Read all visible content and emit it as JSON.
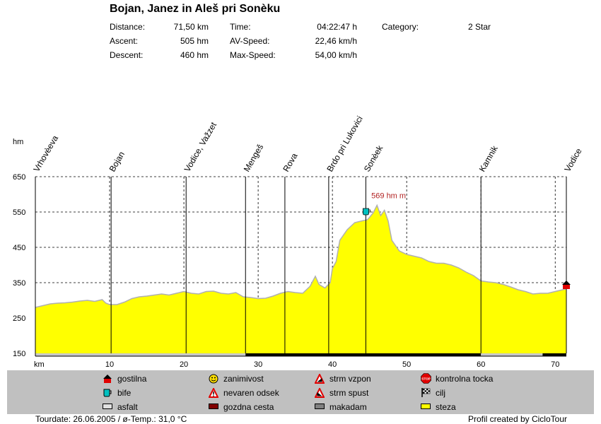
{
  "title": "Bojan, Janez in Aleš pri Sonèku",
  "stats": {
    "distance_label": "Distance:",
    "distance_value": "71,50 km",
    "ascent_label": "Ascent:",
    "ascent_value": "505 hm",
    "descent_label": "Descent:",
    "descent_value": "460 hm",
    "time_label": "Time:",
    "time_value": "04:22:47 h",
    "avspeed_label": "AV-Speed:",
    "avspeed_value": "22,46 km/h",
    "maxspeed_label": "Max-Speed:",
    "maxspeed_value": "54,00 km/h",
    "category_label": "Category:",
    "category_value": "2 Star"
  },
  "chart_data": {
    "type": "area",
    "ylabel": "hm",
    "xlabel": "km",
    "xlim": [
      0,
      71.5
    ],
    "ylim": [
      150,
      650
    ],
    "yticks": [
      650,
      550,
      450,
      350,
      250,
      150
    ],
    "xticks": [
      10,
      20,
      30,
      40,
      50,
      60,
      70
    ],
    "fill_color": "#ffff00",
    "line_color": "#b0b0b0",
    "grid": true,
    "max_annotation": "569 hm m",
    "max_point": {
      "x": 46.0,
      "y": 569
    },
    "profile": {
      "x": [
        0,
        1,
        2,
        3,
        4,
        5,
        6,
        7,
        8,
        9,
        9.5,
        10,
        11,
        12,
        13,
        14,
        15,
        16,
        17,
        18,
        19,
        20,
        21,
        22,
        23,
        24,
        25,
        26,
        27,
        28,
        29,
        30,
        31,
        32,
        33,
        34,
        35,
        36,
        37,
        37.7,
        38.2,
        39,
        39.7,
        40,
        40.5,
        41,
        42,
        43,
        44,
        44.7,
        45,
        45.5,
        46,
        46.5,
        47,
        47.5,
        48,
        48.5,
        49,
        50,
        51,
        52,
        53,
        54,
        55,
        56,
        57,
        58,
        59,
        60,
        61,
        62,
        63,
        64,
        65,
        66,
        67,
        68,
        69,
        70,
        71,
        71.5
      ],
      "y": [
        280,
        285,
        290,
        292,
        293,
        295,
        298,
        300,
        297,
        302,
        292,
        288,
        288,
        295,
        305,
        310,
        312,
        315,
        318,
        315,
        320,
        325,
        320,
        318,
        325,
        326,
        320,
        318,
        322,
        310,
        308,
        305,
        306,
        312,
        320,
        325,
        322,
        320,
        340,
        368,
        345,
        335,
        350,
        390,
        410,
        470,
        500,
        520,
        525,
        528,
        535,
        548,
        569,
        540,
        555,
        525,
        470,
        455,
        440,
        430,
        425,
        420,
        410,
        405,
        405,
        400,
        392,
        380,
        370,
        355,
        352,
        350,
        345,
        338,
        330,
        325,
        318,
        320,
        320,
        325,
        330,
        332
      ]
    },
    "waypoints": [
      {
        "label": "Vrhovèeva",
        "x": 0
      },
      {
        "label": "Bojan",
        "x": 10.2
      },
      {
        "label": "Vodice, Važzet",
        "x": 20.3
      },
      {
        "label": "Mengeš",
        "x": 28.3
      },
      {
        "label": "Rova",
        "x": 33.6
      },
      {
        "label": "Brdo pri Lukovici",
        "x": 39.5
      },
      {
        "label": "Sonèek",
        "x": 44.5
      },
      {
        "label": "Kamnik",
        "x": 60.0
      },
      {
        "label": "Vodice",
        "x": 71.5
      }
    ],
    "surface_bands": [
      {
        "from": 0,
        "to": 28.3,
        "color": "#c8c8c8"
      },
      {
        "from": 28.3,
        "to": 60.0,
        "color": "#000000"
      },
      {
        "from": 60.0,
        "to": 68.3,
        "color": "#c8c8c8"
      },
      {
        "from": 68.3,
        "to": 71.5,
        "color": "#000000"
      }
    ]
  },
  "legend": {
    "items": [
      {
        "icon": "house-icon",
        "label": "gostilna"
      },
      {
        "icon": "cup-icon",
        "label": "bife"
      },
      {
        "icon": "asphalt-swatch-icon",
        "label": "asfalt",
        "color": "#e0e0e0"
      },
      {
        "icon": "smiley-icon",
        "label": "zanimivost"
      },
      {
        "icon": "warning-icon",
        "label": "nevaren odsek"
      },
      {
        "icon": "forest-road-swatch-icon",
        "label": "gozdna cesta",
        "color": "#800000"
      },
      {
        "icon": "steep-up-icon",
        "label": "strm vzpon"
      },
      {
        "icon": "steep-down-icon",
        "label": "strm spust"
      },
      {
        "icon": "macadam-swatch-icon",
        "label": "makadam",
        "color": "#808080"
      },
      {
        "icon": "stop-sign-icon",
        "label": "kontrolna tocka"
      },
      {
        "icon": "finish-flag-icon",
        "label": "cilj"
      },
      {
        "icon": "path-swatch-icon",
        "label": "steza",
        "color": "#ffff00"
      }
    ]
  },
  "footer": {
    "tour_info": "Tourdate: 26.06.2005  /  ø-Temp.: 31,0 °C",
    "credit": "Profil created by CicloTour"
  }
}
